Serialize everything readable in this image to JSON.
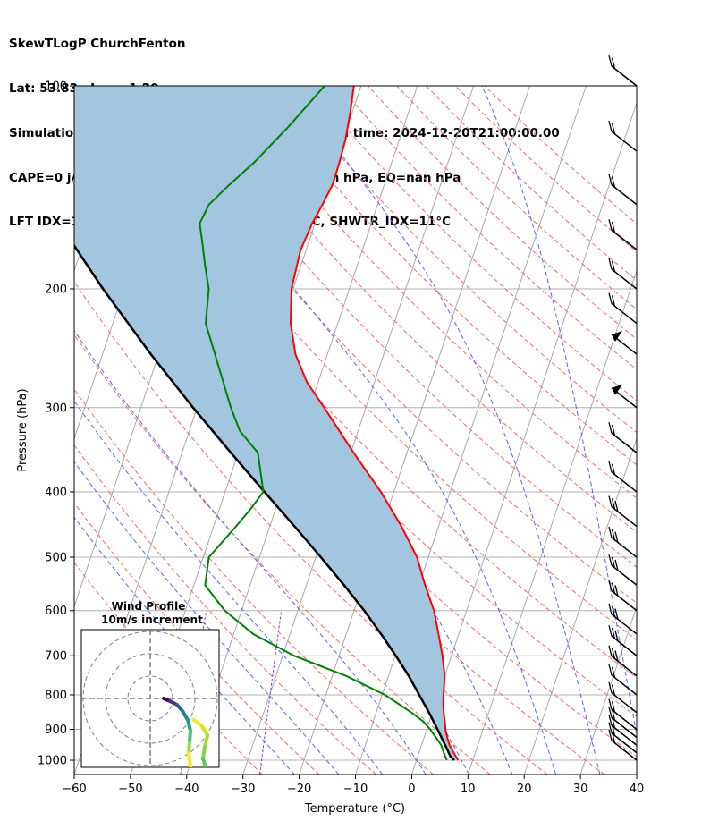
{
  "header": {
    "line1": "SkewTLogP ChurchFenton",
    "line2": "Lat: 53.83   Lon: -1.20",
    "line3": "Simulation start time: 2024-12-18_00:00:00, Valid time: 2024-12-20T21:00:00.00",
    "line4": "CAPE=0 j/kg, CIN=0 j/kg, LCL=987 hPa, LFC=nan hPa, EQ=nan hPa",
    "line5": "LFT IDX=12°C, K IDX=-3°C, TOTAL TOTS=39°C, SHWTR_IDX=11°C"
  },
  "chart_data": {
    "type": "line",
    "xlabel": "Temperature (°C)",
    "ylabel": "Pressure (hPa)",
    "xlim": [
      -60,
      40
    ],
    "ylim": [
      1050,
      100
    ],
    "y_scale": "log",
    "x_ticks": [
      -60,
      -50,
      -40,
      -30,
      -20,
      -10,
      0,
      10,
      20,
      30,
      40
    ],
    "x_tick_labels": [
      "−60",
      "−50",
      "−40",
      "−30",
      "−20",
      "−10",
      "0",
      "10",
      "20",
      "30",
      "40"
    ],
    "y_ticks": [
      100,
      200,
      300,
      400,
      500,
      600,
      700,
      800,
      900,
      1000
    ],
    "y_tick_labels": [
      "100",
      "200",
      "300",
      "400",
      "500",
      "600",
      "700",
      "800",
      "900",
      "1000"
    ],
    "grid": true,
    "series": [
      {
        "role": "temperature",
        "color": "#ff0000",
        "points": [
          [
            1000,
            7.4
          ],
          [
            975,
            6.2
          ],
          [
            950,
            5.0
          ],
          [
            925,
            4.1
          ],
          [
            900,
            3.3
          ],
          [
            875,
            2.7
          ],
          [
            850,
            2.0
          ],
          [
            825,
            1.4
          ],
          [
            800,
            0.9
          ],
          [
            750,
            0.0
          ],
          [
            700,
            -1.6
          ],
          [
            650,
            -3.6
          ],
          [
            600,
            -5.8
          ],
          [
            550,
            -8.9
          ],
          [
            500,
            -12.0
          ],
          [
            450,
            -16.6
          ],
          [
            400,
            -22.3
          ],
          [
            350,
            -29.5
          ],
          [
            300,
            -37.4
          ],
          [
            275,
            -42.0
          ],
          [
            250,
            -45.7
          ],
          [
            225,
            -48.4
          ],
          [
            200,
            -50.3
          ],
          [
            175,
            -51.0
          ],
          [
            160,
            -50.5
          ],
          [
            150,
            -49.8
          ],
          [
            140,
            -49.2
          ],
          [
            130,
            -49.3
          ],
          [
            120,
            -49.6
          ],
          [
            110,
            -50.3
          ],
          [
            100,
            -51.3
          ]
        ]
      },
      {
        "role": "dewpoint",
        "color": "#008000",
        "points": [
          [
            1000,
            5.4
          ],
          [
            975,
            4.4
          ],
          [
            950,
            3.5
          ],
          [
            925,
            2.1
          ],
          [
            900,
            0.6
          ],
          [
            875,
            -1.2
          ],
          [
            850,
            -3.7
          ],
          [
            800,
            -9.5
          ],
          [
            750,
            -17.5
          ],
          [
            700,
            -28.0
          ],
          [
            650,
            -36.5
          ],
          [
            600,
            -43.0
          ],
          [
            550,
            -48.0
          ],
          [
            500,
            -49.0
          ],
          [
            450,
            -46.0
          ],
          [
            425,
            -44.5
          ],
          [
            400,
            -43.2
          ],
          [
            350,
            -46.5
          ],
          [
            325,
            -51.0
          ],
          [
            300,
            -54.0
          ],
          [
            250,
            -60.0
          ],
          [
            225,
            -63.5
          ],
          [
            200,
            -65.0
          ],
          [
            185,
            -67.0
          ],
          [
            170,
            -69.0
          ],
          [
            160,
            -70.5
          ],
          [
            150,
            -70.0
          ],
          [
            140,
            -67.5
          ],
          [
            130,
            -64.5
          ],
          [
            115,
            -60.5
          ],
          [
            100,
            -56.5
          ]
        ]
      },
      {
        "role": "parcel",
        "color": "#000000",
        "points": [
          [
            1000,
            6.7
          ],
          [
            987,
            5.8
          ],
          [
            950,
            4.2
          ],
          [
            900,
            1.9
          ],
          [
            850,
            -0.6
          ],
          [
            800,
            -3.4
          ],
          [
            750,
            -6.4
          ],
          [
            700,
            -9.9
          ],
          [
            650,
            -13.8
          ],
          [
            600,
            -18.2
          ],
          [
            550,
            -23.3
          ],
          [
            500,
            -29.1
          ],
          [
            450,
            -35.6
          ],
          [
            400,
            -43.0
          ],
          [
            350,
            -51.3
          ],
          [
            300,
            -60.7
          ],
          [
            250,
            -71.4
          ],
          [
            200,
            -83.8
          ],
          [
            150,
            -98.8
          ],
          [
            100,
            -119.5
          ]
        ]
      }
    ],
    "cape_cin_shading_color": "#a3c6e0",
    "wind_barbs": {
      "color": "#000000",
      "levels_hpa": [
        1000,
        975,
        950,
        925,
        900,
        850,
        800,
        750,
        700,
        650,
        600,
        550,
        500,
        450,
        400,
        350,
        300,
        250,
        225,
        200,
        175,
        150,
        125,
        100
      ]
    },
    "hodograph": {
      "title": "Wind Profile",
      "subtitle": "10m/s increment",
      "ring_increment_ms": 10,
      "trace_colormap": "viridis"
    }
  }
}
